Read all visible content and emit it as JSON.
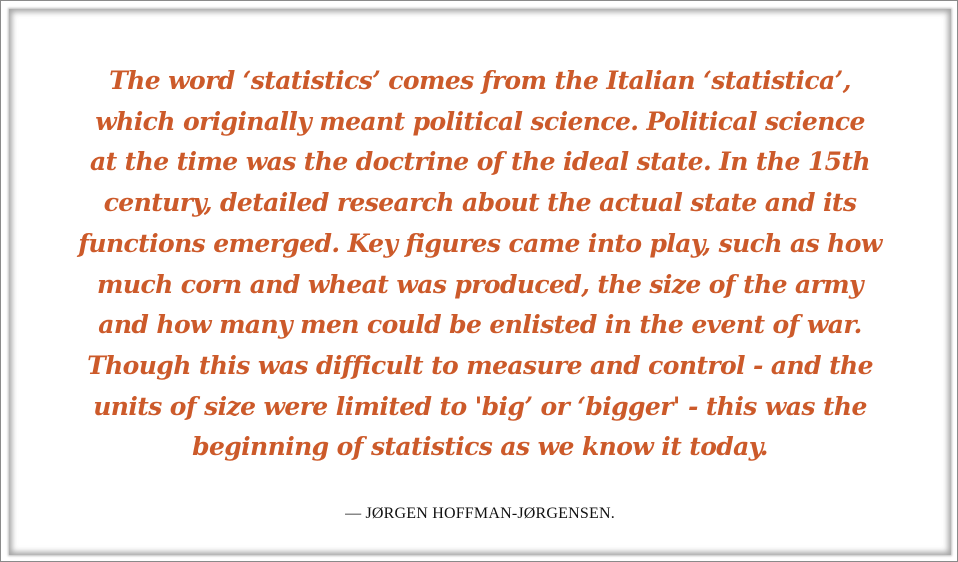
{
  "quote": {
    "lines": [
      "The word ‘statistics’ comes from the Italian ‘statistica’,",
      "which originally meant political science. Political science",
      "at the time was the doctrine of the ideal state. In the 15th",
      "century, detailed research about the actual state and its",
      "functions emerged. Key figures came into play, such as how",
      "much corn and wheat was produced, the size of the army",
      "and how many men could be enlisted in the event of war.",
      "Though this was difficult to measure and control - and the",
      "units of size were limited to 'big’ or ‘bigger' - this was the",
      "beginning of statistics as we know it today."
    ],
    "color": "#cc5a2a"
  },
  "attribution": "— JØRGEN HOFFMAN-JØRGENSEN."
}
